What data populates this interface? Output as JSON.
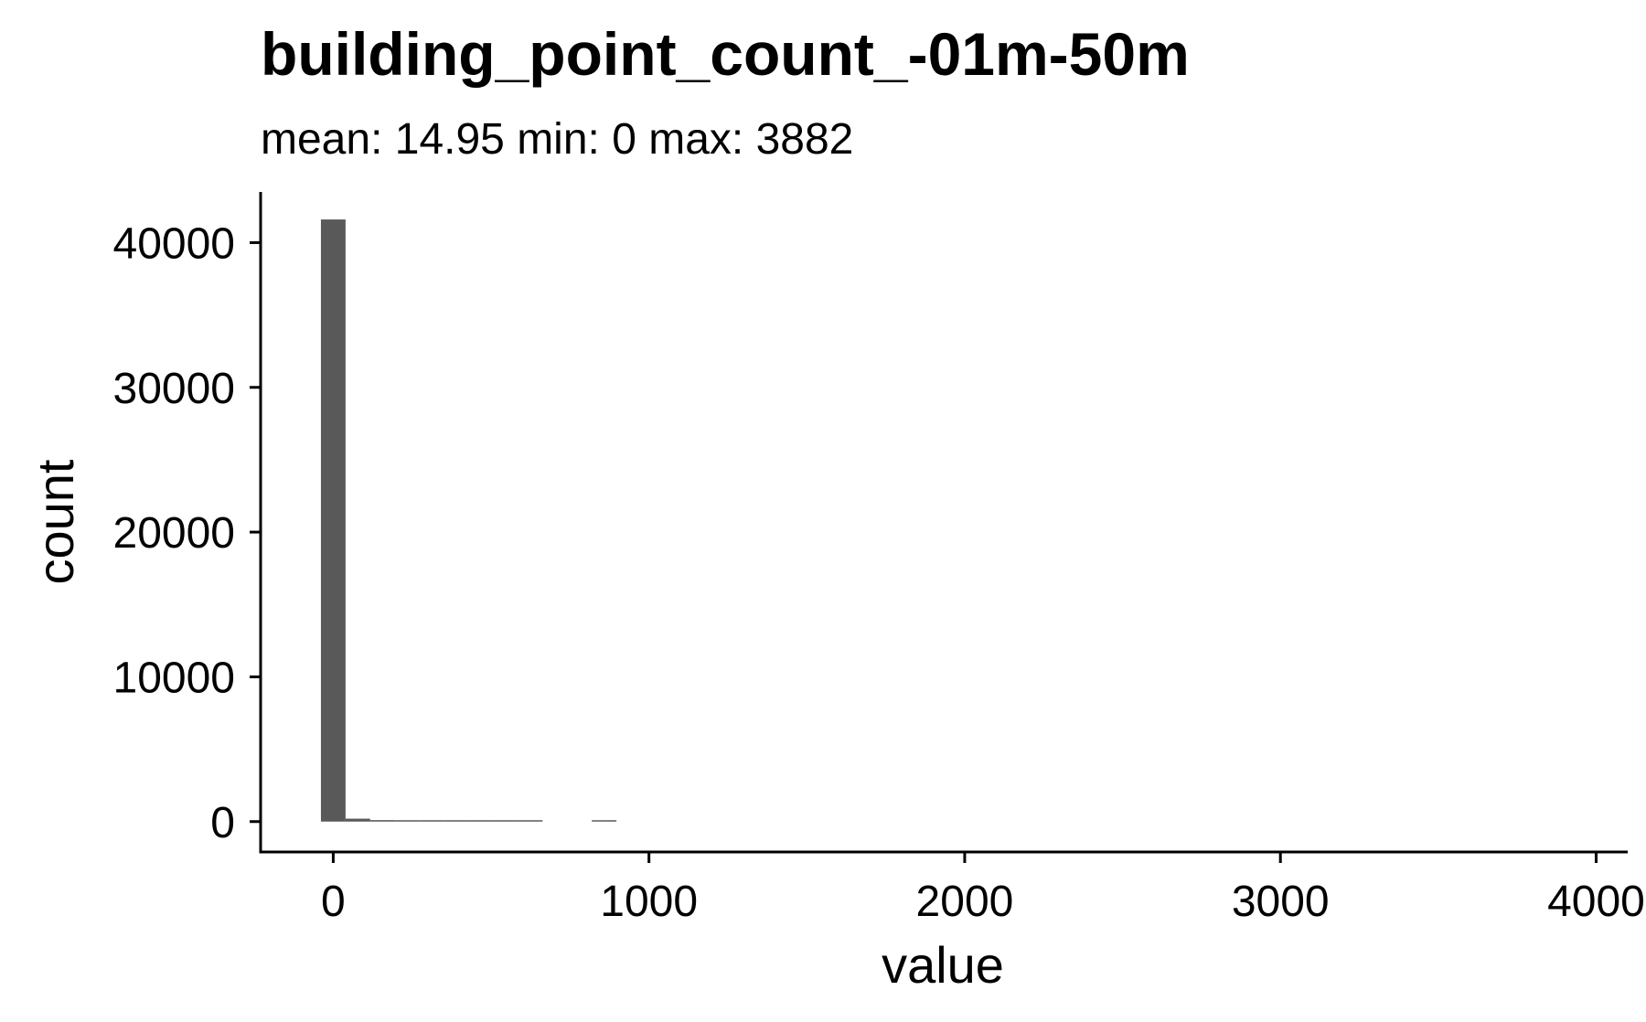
{
  "chart_data": {
    "type": "bar",
    "title": "building_point_count_-01m-50m",
    "subtitle": "mean: 14.95   min: 0   max: 3882",
    "xlabel": "value",
    "ylabel": "count",
    "xlim": [
      -230,
      4100
    ],
    "ylim": [
      -2100,
      43500
    ],
    "x_ticks": [
      0,
      1000,
      2000,
      3000,
      4000
    ],
    "y_ticks": [
      0,
      10000,
      20000,
      30000,
      40000
    ],
    "bin_width": 78,
    "bar_color": "#595959",
    "grid": false,
    "legend": "none",
    "bins": [
      {
        "x": 0,
        "count": 41600
      },
      {
        "x": 78,
        "count": 200
      },
      {
        "x": 156,
        "count": 100
      },
      {
        "x": 234,
        "count": 60
      },
      {
        "x": 312,
        "count": 40
      },
      {
        "x": 390,
        "count": 30
      },
      {
        "x": 468,
        "count": 20
      },
      {
        "x": 546,
        "count": 15
      },
      {
        "x": 624,
        "count": 10
      },
      {
        "x": 702,
        "count": 0
      },
      {
        "x": 780,
        "count": 0
      },
      {
        "x": 858,
        "count": 10
      }
    ]
  }
}
